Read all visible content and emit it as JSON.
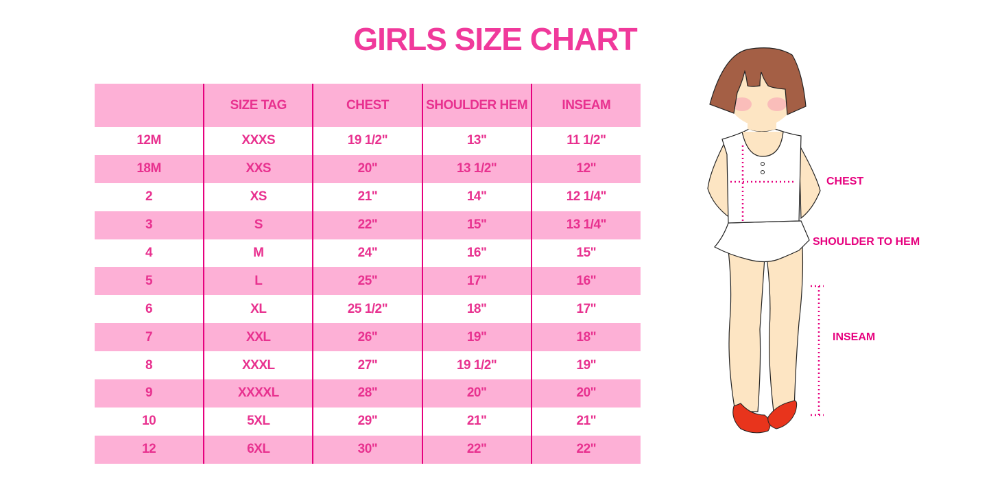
{
  "title": "GIRLS SIZE CHART",
  "table": {
    "headers": [
      "",
      "SIZE TAG",
      "CHEST",
      "SHOULDER HEM",
      "INSEAM"
    ],
    "rows": [
      [
        "12M",
        "XXXS",
        "19 1/2\"",
        "13\"",
        "11 1/2\""
      ],
      [
        "18M",
        "XXS",
        "20\"",
        "13 1/2\"",
        "12\""
      ],
      [
        "2",
        "XS",
        "21\"",
        "14\"",
        "12 1/4\""
      ],
      [
        "3",
        "S",
        "22\"",
        "15\"",
        "13 1/4\""
      ],
      [
        "4",
        "M",
        "24\"",
        "16\"",
        "15\""
      ],
      [
        "5",
        "L",
        "25\"",
        "17\"",
        "16\""
      ],
      [
        "6",
        "XL",
        "25 1/2\"",
        "18\"",
        "17\""
      ],
      [
        "7",
        "XXL",
        "26\"",
        "19\"",
        "18\""
      ],
      [
        "8",
        "XXXL",
        "27\"",
        "19 1/2\"",
        "19\""
      ],
      [
        "9",
        "XXXXL",
        "28\"",
        "20\"",
        "20\""
      ],
      [
        "10",
        "5XL",
        "29\"",
        "21\"",
        "21\""
      ],
      [
        "12",
        "6XL",
        "30\"",
        "22\"",
        "22\""
      ]
    ]
  },
  "figure": {
    "labels": {
      "chest": "CHEST",
      "shoulder_to_hem": "SHOULDER TO HEM",
      "inseam": "INSEAM"
    }
  },
  "colors": {
    "accent": "#f0399b",
    "band": "#fdb0d6",
    "measure": "#e6007e"
  }
}
